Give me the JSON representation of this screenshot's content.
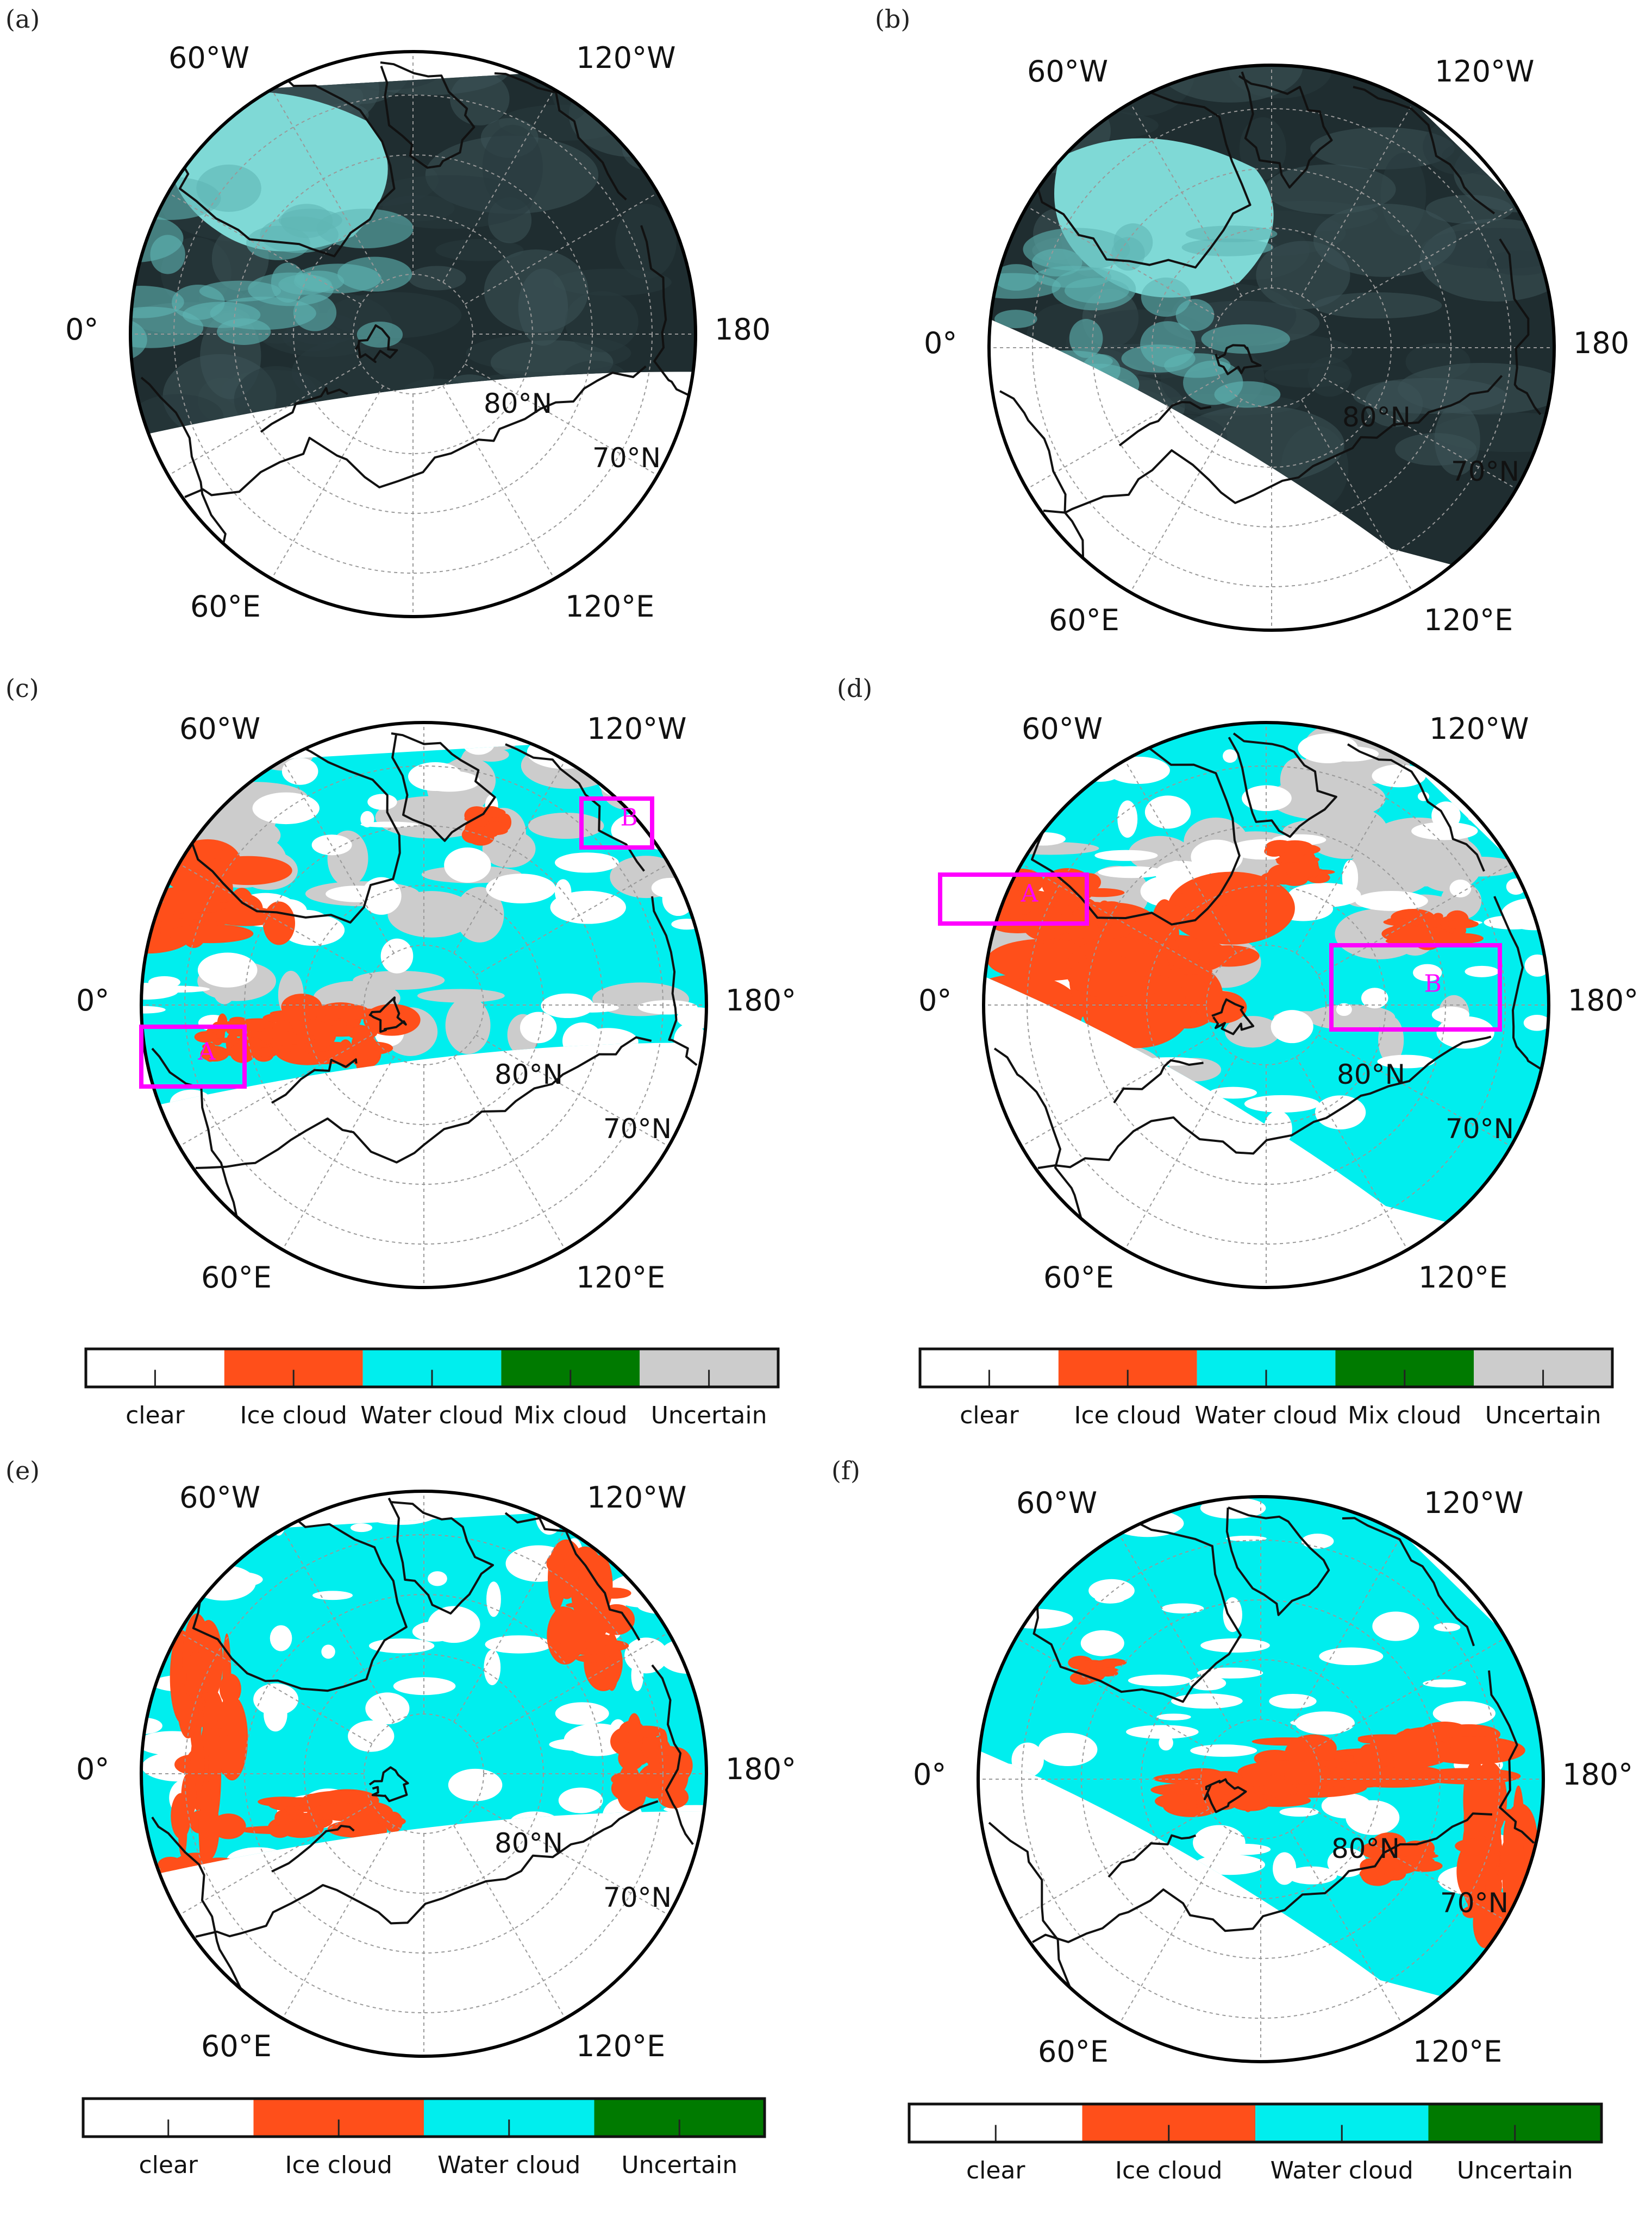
{
  "panels": [
    {
      "id": "a",
      "label": "(a)",
      "kind": "rgb",
      "lon_labels": {
        "w60": "60°W",
        "w120": "120°W",
        "e60": "60°E",
        "e120": "120°E",
        "zero": "0°",
        "dateline": "180"
      },
      "lat_labels": {
        "lat80": "80°N",
        "lat70": "70°N"
      }
    },
    {
      "id": "b",
      "label": "(b)",
      "kind": "rgb",
      "lon_labels": {
        "w60": "60°W",
        "w120": "120°W",
        "e60": "60°E",
        "e120": "120°E",
        "zero": "0°",
        "dateline": "180"
      },
      "lat_labels": {
        "lat80": "80°N",
        "lat70": "70°N"
      }
    },
    {
      "id": "c",
      "label": "(c)",
      "kind": "phase",
      "boxes": [
        "A",
        "B"
      ],
      "lon_labels": {
        "w60": "60°W",
        "w120": "120°W",
        "e60": "60°E",
        "e120": "120°E",
        "zero": "0°",
        "dateline": "180°"
      },
      "lat_labels": {
        "lat80": "80°N",
        "lat70": "70°N"
      }
    },
    {
      "id": "d",
      "label": "(d)",
      "kind": "phase",
      "boxes": [
        "A",
        "B"
      ],
      "lon_labels": {
        "w60": "60°W",
        "w120": "120°W",
        "e60": "60°E",
        "e120": "120°E",
        "zero": "0°",
        "dateline": "180°"
      },
      "lat_labels": {
        "lat80": "80°N",
        "lat70": "70°N"
      }
    },
    {
      "id": "e",
      "label": "(e)",
      "kind": "phase",
      "lon_labels": {
        "w60": "60°W",
        "w120": "120°W",
        "e60": "60°E",
        "e120": "120°E",
        "zero": "0°",
        "dateline": "180°"
      },
      "lat_labels": {
        "lat80": "80°N",
        "lat70": "70°N"
      }
    },
    {
      "id": "f",
      "label": "(f)",
      "kind": "phase",
      "lon_labels": {
        "w60": "60°W",
        "w120": "120°W",
        "e60": "60°E",
        "e120": "120°E",
        "zero": "0°",
        "dateline": "180°"
      },
      "lat_labels": {
        "lat80": "80°N",
        "lat70": "70°N"
      }
    }
  ],
  "legend5": {
    "labels": [
      "clear",
      "Ice cloud",
      "Water cloud",
      "Mix cloud",
      "Uncertain"
    ],
    "colors": [
      "#ffffff",
      "#ff4f1a",
      "#00eeee",
      "#007a00",
      "#cccccc"
    ]
  },
  "legend4": {
    "labels": [
      "clear",
      "Ice cloud",
      "Water cloud",
      "Uncertain"
    ],
    "colors": [
      "#ffffff",
      "#ff4f1a",
      "#00eeee",
      "#007a00"
    ]
  },
  "colors": {
    "clear": "#ffffff",
    "ice": "#ff4f1a",
    "water": "#00eeee",
    "mix": "#007a00",
    "uncertain": "#cccccc",
    "rgb_dark": "#1f2d30",
    "rgb_ice": "#7fd9d6",
    "box": "#ff00ff"
  }
}
